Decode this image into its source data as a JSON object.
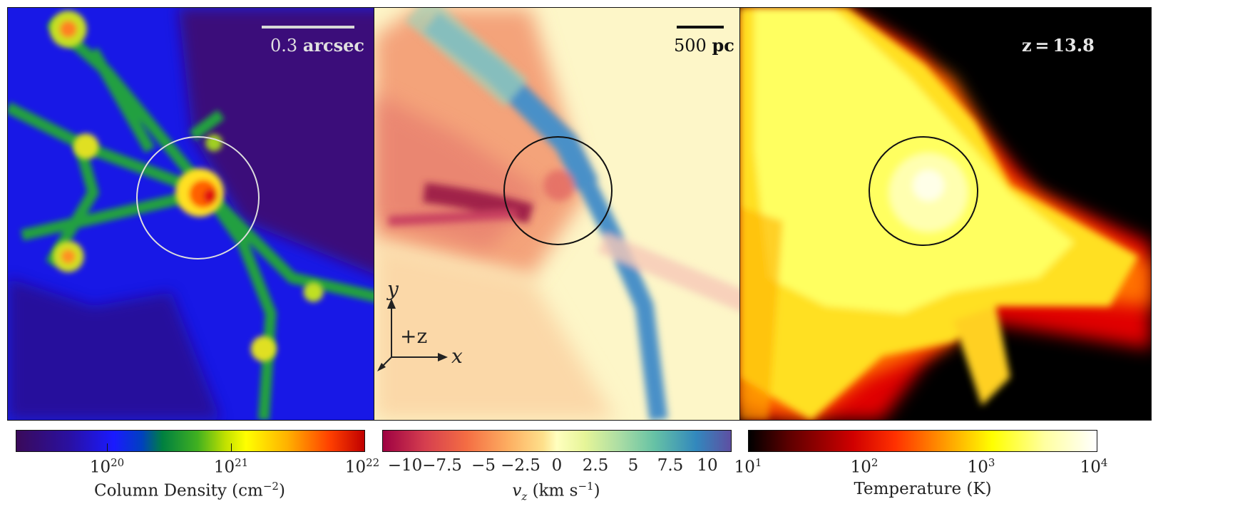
{
  "panels": [
    {
      "name": "column-density-map",
      "overlay_text_value": "0.3",
      "overlay_text_unit": "arcsec",
      "circle_color": "#dddddd"
    },
    {
      "name": "velocity-map",
      "overlay_text_value": "500",
      "overlay_text_unit": "pc",
      "circle_color": "#111111",
      "axes": {
        "y": "y",
        "x": "x",
        "z": "+z"
      }
    },
    {
      "name": "temperature-map",
      "overlay_text_value": "z = 13.8",
      "circle_color": "#111111"
    }
  ],
  "colorbars": [
    {
      "title": "Column Density  (cm",
      "title_sup": "−2",
      "title_end": ")",
      "ticks": [
        {
          "base": "10",
          "exp": "20"
        },
        {
          "base": "10",
          "exp": "21"
        },
        {
          "base": "10",
          "exp": "22"
        }
      ],
      "colors": [
        "#3a0a5a",
        "#1a1aff",
        "#0040ff",
        "#00a060",
        "#40c020",
        "#ffff00",
        "#ffb000",
        "#ff4000",
        "#c00000"
      ]
    },
    {
      "title_var": "v",
      "title_sub": "z",
      "title": "  (km s",
      "title_sup": "−1",
      "title_end": ")",
      "ticks": [
        "−10",
        "−7.5",
        "−5",
        "−2.5",
        "0",
        "2.5",
        "5",
        "7.5",
        "10"
      ],
      "colors": [
        "#9e0142",
        "#d53e4f",
        "#f46d43",
        "#fdae61",
        "#fee08b",
        "#ffffbf",
        "#e6f598",
        "#abdda4",
        "#66c2a5",
        "#3288bd",
        "#5e4fa2"
      ]
    },
    {
      "title": "Temperature  (K)",
      "ticks": [
        {
          "base": "10",
          "exp": "1"
        },
        {
          "base": "10",
          "exp": "2"
        },
        {
          "base": "10",
          "exp": "3"
        },
        {
          "base": "10",
          "exp": "4"
        }
      ],
      "colors": [
        "#000000",
        "#600000",
        "#d00000",
        "#ff3000",
        "#ff9000",
        "#ffff00",
        "#ffffa0",
        "#ffffff"
      ]
    }
  ]
}
